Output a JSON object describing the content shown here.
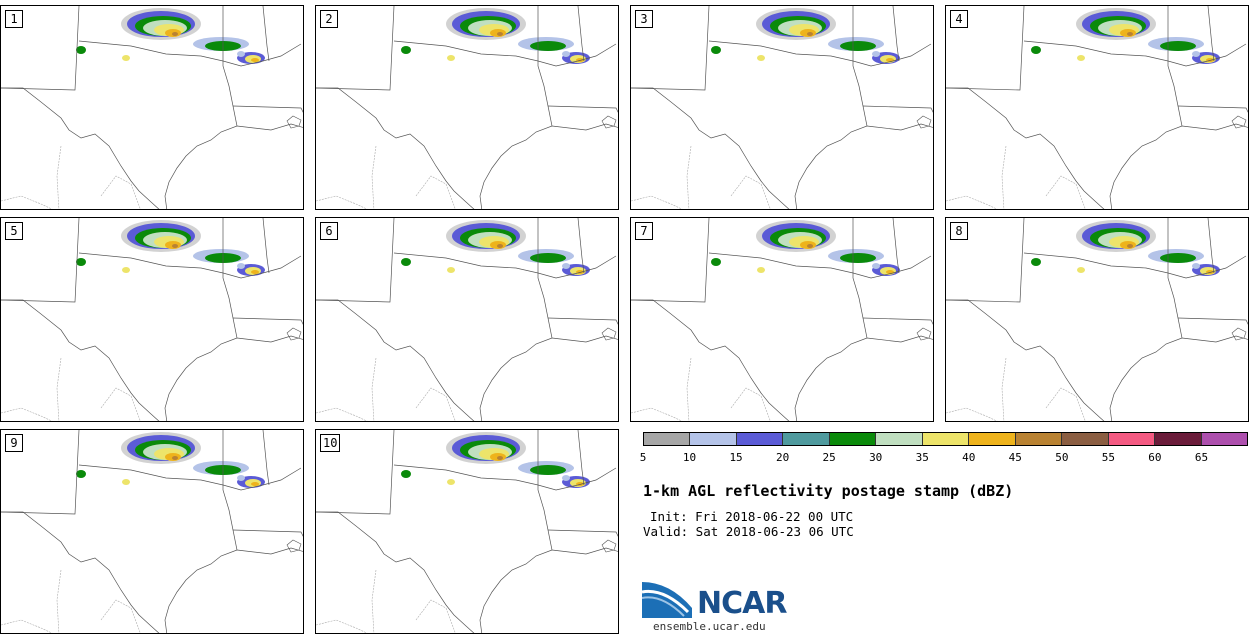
{
  "panels": [
    {
      "label": "1",
      "storm": "north"
    },
    {
      "label": "2",
      "storm": "north-east"
    },
    {
      "label": "3",
      "storm": "north-central"
    },
    {
      "label": "4",
      "storm": "north-east"
    },
    {
      "label": "5",
      "storm": "north"
    },
    {
      "label": "6",
      "storm": "north-east"
    },
    {
      "label": "7",
      "storm": "north-central"
    },
    {
      "label": "8",
      "storm": "north-east"
    },
    {
      "label": "9",
      "storm": "north"
    },
    {
      "label": "10",
      "storm": "north-east"
    }
  ],
  "colorbar": {
    "colors": [
      "#a6a6a6",
      "#b4c3e8",
      "#5b5bd6",
      "#4f9a9e",
      "#0a8a0a",
      "#c0dfc0",
      "#ede46a",
      "#eeb31c",
      "#b98232",
      "#8b5e42",
      "#f45a82",
      "#6b1c3a",
      "#ad4fad"
    ],
    "ticks": [
      "5",
      "10",
      "15",
      "20",
      "25",
      "30",
      "35",
      "40",
      "45",
      "50",
      "55",
      "60",
      "65"
    ]
  },
  "title": "1-km AGL reflectivity postage stamp (dBZ)",
  "init": "Init: Fri 2018-06-22 00 UTC",
  "valid": "Valid: Sat 2018-06-23 06 UTC",
  "logo": {
    "text": "NCAR",
    "url": "ensemble.ucar.edu"
  }
}
